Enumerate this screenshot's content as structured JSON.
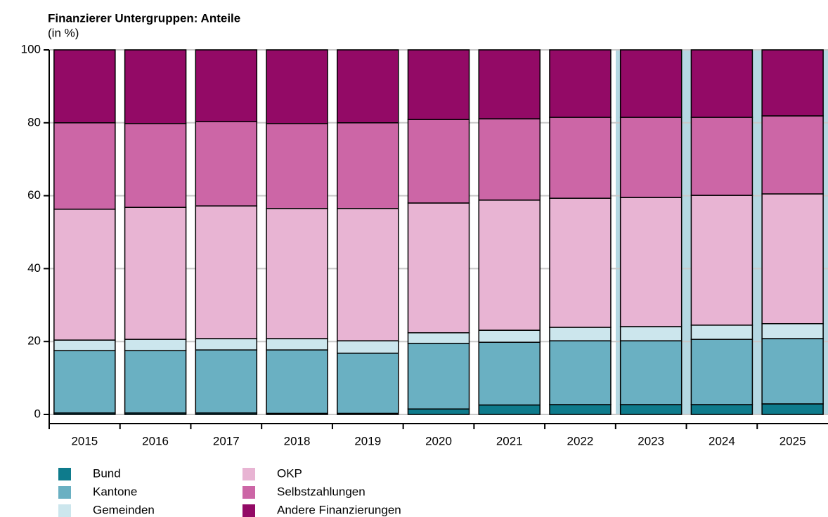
{
  "chart_data": {
    "type": "stacked_bar",
    "title": "Finanzierer Untergruppen: Anteile",
    "subtitle": "(in %)",
    "categories": [
      "2015",
      "2016",
      "2017",
      "2018",
      "2019",
      "2020",
      "2021",
      "2022",
      "2023",
      "2024",
      "2025"
    ],
    "series": [
      {
        "name": "Bund",
        "color": "#0e7b8c",
        "values": [
          0.4,
          0.4,
          0.4,
          0.3,
          0.3,
          1.5,
          2.6,
          2.7,
          2.7,
          2.7,
          2.9
        ]
      },
      {
        "name": "Kantone",
        "color": "#6ab0c2",
        "values": [
          17.1,
          17.1,
          17.3,
          17.4,
          16.5,
          18.0,
          17.2,
          17.5,
          17.5,
          17.9,
          17.9
        ]
      },
      {
        "name": "Gemeinden",
        "color": "#cce6ed",
        "values": [
          2.9,
          3.1,
          3.1,
          3.1,
          3.4,
          2.9,
          3.3,
          3.7,
          3.9,
          3.9,
          4.1
        ]
      },
      {
        "name": "OKP",
        "color": "#e8b4d3",
        "values": [
          35.9,
          36.2,
          36.4,
          35.7,
          36.3,
          35.6,
          35.7,
          35.4,
          35.4,
          35.6,
          35.6
        ]
      },
      {
        "name": "Selbstzahlungen",
        "color": "#cc66a6",
        "values": [
          23.7,
          23.0,
          23.1,
          23.3,
          23.5,
          22.9,
          22.3,
          22.2,
          22.0,
          21.4,
          21.4
        ]
      },
      {
        "name": "Andere Finanzierungen",
        "color": "#930a66",
        "values": [
          20.0,
          20.2,
          19.7,
          20.2,
          20.0,
          19.1,
          18.9,
          18.5,
          18.5,
          18.5,
          18.1
        ]
      }
    ],
    "ylim": [
      0,
      100
    ],
    "yticks": [
      0,
      20,
      40,
      60,
      80,
      100
    ],
    "grid": true
  }
}
